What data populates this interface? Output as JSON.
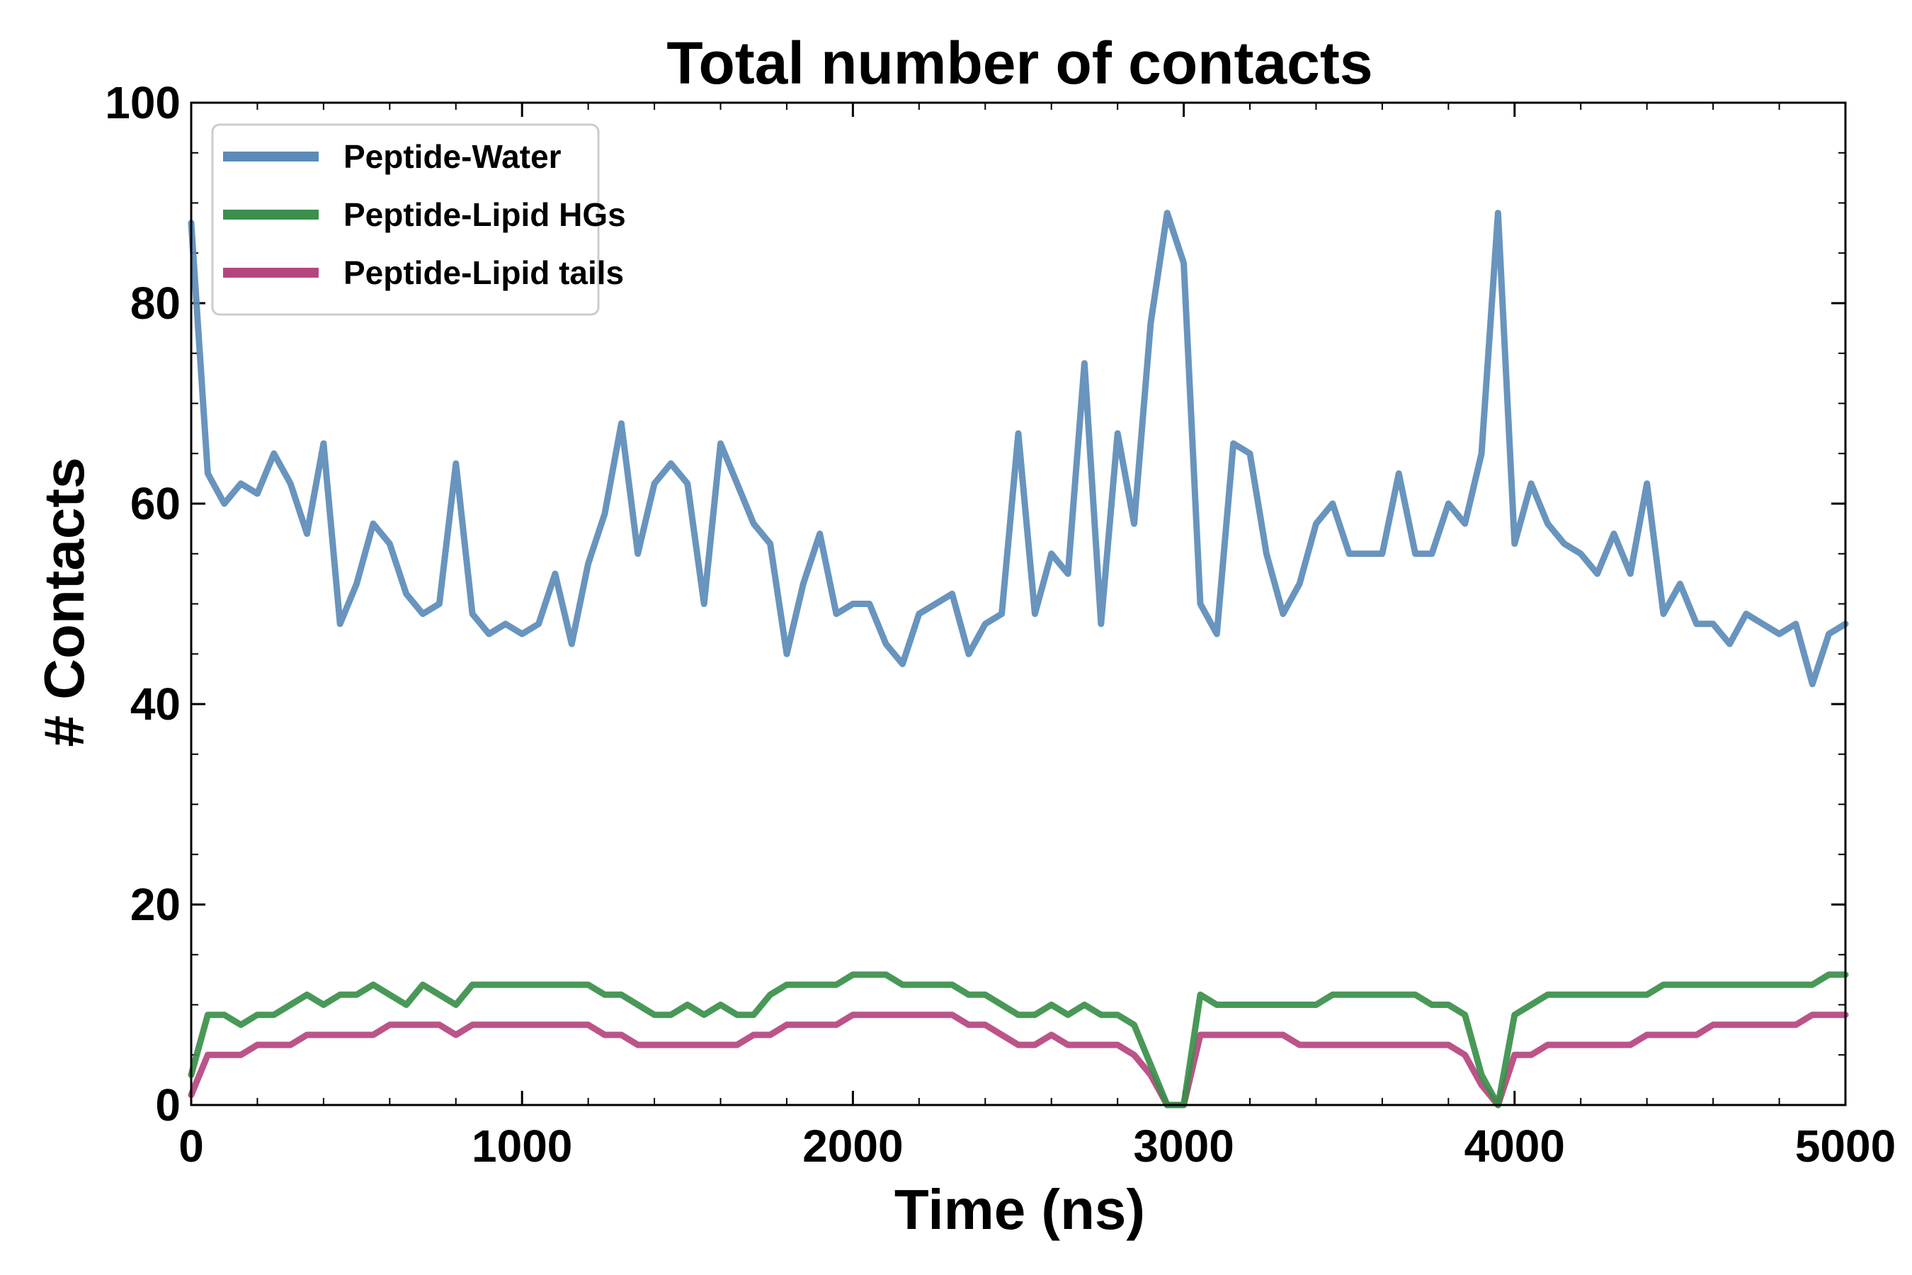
{
  "chart_data": {
    "type": "line",
    "title": "Total number of contacts",
    "xlabel": "Time (ns)",
    "ylabel": "# Contacts",
    "xlim": [
      0,
      5000
    ],
    "ylim": [
      0,
      100
    ],
    "xticks": [
      0,
      1000,
      2000,
      3000,
      4000,
      5000
    ],
    "yticks": [
      0,
      20,
      40,
      60,
      80,
      100
    ],
    "x_minor_step": 200,
    "y_minor_step": 5,
    "legend_position": "top-left",
    "grid": false,
    "x": [
      0,
      50,
      100,
      150,
      200,
      250,
      300,
      350,
      400,
      450,
      500,
      550,
      600,
      650,
      700,
      750,
      800,
      850,
      900,
      950,
      1000,
      1050,
      1100,
      1150,
      1200,
      1250,
      1300,
      1350,
      1400,
      1450,
      1500,
      1550,
      1600,
      1650,
      1700,
      1750,
      1800,
      1850,
      1900,
      1950,
      2000,
      2050,
      2100,
      2150,
      2200,
      2250,
      2300,
      2350,
      2400,
      2450,
      2500,
      2550,
      2600,
      2650,
      2700,
      2750,
      2800,
      2850,
      2900,
      2950,
      3000,
      3050,
      3100,
      3150,
      3200,
      3250,
      3300,
      3350,
      3400,
      3450,
      3500,
      3550,
      3600,
      3650,
      3700,
      3750,
      3800,
      3850,
      3900,
      3950,
      4000,
      4050,
      4100,
      4150,
      4200,
      4250,
      4300,
      4350,
      4400,
      4450,
      4500,
      4550,
      4600,
      4650,
      4700,
      4750,
      4800,
      4850,
      4900,
      4950,
      5000
    ],
    "series": [
      {
        "name": "Peptide-Water",
        "color": "#5b8bb9",
        "values": [
          88,
          63,
          60,
          62,
          61,
          65,
          62,
          57,
          66,
          48,
          52,
          58,
          56,
          51,
          49,
          50,
          64,
          49,
          47,
          48,
          47,
          48,
          53,
          46,
          54,
          59,
          68,
          55,
          62,
          64,
          62,
          50,
          66,
          62,
          58,
          56,
          45,
          52,
          57,
          49,
          50,
          50,
          46,
          44,
          49,
          50,
          51,
          45,
          48,
          49,
          67,
          49,
          55,
          53,
          74,
          48,
          67,
          58,
          78,
          89,
          84,
          50,
          47,
          66,
          65,
          55,
          49,
          52,
          58,
          60,
          55,
          55,
          55,
          63,
          55,
          55,
          60,
          58,
          65,
          89,
          56,
          62,
          58,
          56,
          55,
          53,
          57,
          53,
          62,
          49,
          52,
          48,
          48,
          46,
          49,
          48,
          47,
          48,
          42,
          47,
          48
        ]
      },
      {
        "name": "Peptide-Lipid HGs",
        "color": "#3a8f4a",
        "values": [
          3,
          9,
          9,
          8,
          9,
          9,
          10,
          11,
          10,
          11,
          11,
          12,
          11,
          10,
          12,
          11,
          10,
          12,
          12,
          12,
          12,
          12,
          12,
          12,
          12,
          11,
          11,
          10,
          9,
          9,
          10,
          9,
          10,
          9,
          9,
          11,
          12,
          12,
          12,
          12,
          13,
          13,
          13,
          12,
          12,
          12,
          12,
          11,
          11,
          10,
          9,
          9,
          10,
          9,
          10,
          9,
          9,
          8,
          4,
          0,
          0,
          11,
          10,
          10,
          10,
          10,
          10,
          10,
          10,
          11,
          11,
          11,
          11,
          11,
          11,
          10,
          10,
          9,
          3,
          0,
          9,
          10,
          11,
          11,
          11,
          11,
          11,
          11,
          11,
          12,
          12,
          12,
          12,
          12,
          12,
          12,
          12,
          12,
          12,
          13,
          13
        ]
      },
      {
        "name": "Peptide-Lipid tails",
        "color": "#b5457e",
        "values": [
          1,
          5,
          5,
          5,
          6,
          6,
          6,
          7,
          7,
          7,
          7,
          7,
          8,
          8,
          8,
          8,
          7,
          8,
          8,
          8,
          8,
          8,
          8,
          8,
          8,
          7,
          7,
          6,
          6,
          6,
          6,
          6,
          6,
          6,
          7,
          7,
          8,
          8,
          8,
          8,
          9,
          9,
          9,
          9,
          9,
          9,
          9,
          8,
          8,
          7,
          6,
          6,
          7,
          6,
          6,
          6,
          6,
          5,
          3,
          0,
          0,
          7,
          7,
          7,
          7,
          7,
          7,
          6,
          6,
          6,
          6,
          6,
          6,
          6,
          6,
          6,
          6,
          5,
          2,
          0,
          5,
          5,
          6,
          6,
          6,
          6,
          6,
          6,
          7,
          7,
          7,
          7,
          8,
          8,
          8,
          8,
          8,
          8,
          9,
          9,
          9
        ]
      }
    ]
  }
}
